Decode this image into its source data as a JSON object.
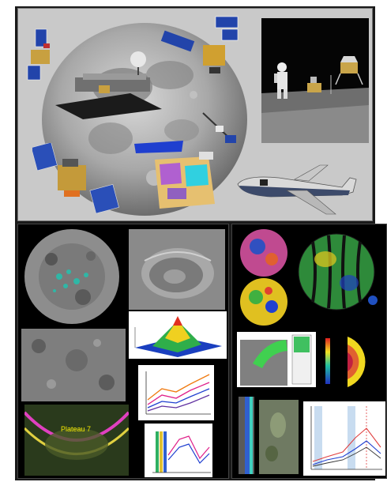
{
  "figure": {
    "annotation_text": "Plateau 7",
    "theme_colors": {
      "background": "#c9c9c9",
      "panel_black": "#000000",
      "moon_gray": "#9a9a9a",
      "accent_yellow": "#f2e600",
      "accent_magenta": "#e040c0"
    }
  },
  "icons": {
    "spacecraft": "satellite-icon",
    "airplane": "airplane-icon",
    "astronaut": "astronaut-icon",
    "lander": "lunar-lander-icon"
  }
}
